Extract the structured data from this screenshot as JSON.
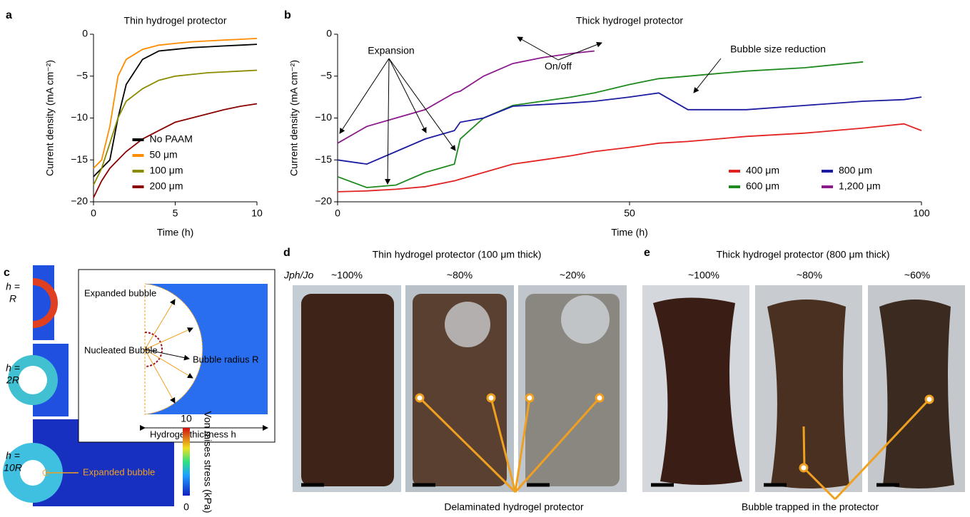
{
  "chart_data": [
    {
      "type": "line",
      "panel_label": "a",
      "title": "Thin hydrogel protector",
      "x_label": "Time (h)",
      "y_label": "Current density (mA cm⁻²)",
      "x": [
        0,
        0.5,
        1,
        1.5,
        2,
        3,
        4,
        5,
        6,
        7,
        8,
        9,
        10
      ],
      "series": [
        {
          "name": "No PAAM",
          "color": "#000000",
          "values": [
            -17,
            -16,
            -15,
            -10,
            -6,
            -3,
            -2,
            -1.8,
            -1.6,
            -1.5,
            -1.4,
            -1.3,
            -1.2
          ]
        },
        {
          "name": "50 μm",
          "color": "#ff8c00",
          "values": [
            -16,
            -15,
            -11,
            -5,
            -3,
            -1.8,
            -1.3,
            -1.1,
            -0.9,
            -0.8,
            -0.7,
            -0.6,
            -0.5
          ]
        },
        {
          "name": "100 μm",
          "color": "#8b8b00",
          "values": [
            -18,
            -16,
            -13,
            -10,
            -8,
            -6.5,
            -5.5,
            -5,
            -4.8,
            -4.6,
            -4.5,
            -4.4,
            -4.3
          ]
        },
        {
          "name": "200 μm",
          "color": "#8b0000",
          "values": [
            -19.5,
            -17.5,
            -16,
            -15,
            -14,
            -12.5,
            -11.5,
            -10.5,
            -10,
            -9.5,
            -9,
            -8.6,
            -8.3
          ]
        }
      ],
      "xlim": [
        0,
        10
      ],
      "ylim": [
        -20,
        0
      ],
      "xticks": [
        0,
        5,
        10
      ],
      "yticks": [
        {
          "value": -20,
          "label": "−20"
        },
        {
          "value": -15,
          "label": "−15"
        },
        {
          "value": -10,
          "label": "−10"
        },
        {
          "value": -5,
          "label": "−5"
        },
        0
      ],
      "legend": "lower center",
      "legend_columns": 1,
      "annotations": []
    },
    {
      "type": "line",
      "panel_label": "b",
      "title": "Thick hydrogel protector",
      "x_label": "Time (h)",
      "y_label": "Current density (mA cm⁻²)",
      "x": [
        0,
        5,
        10,
        15,
        20,
        21,
        25,
        30,
        35,
        40,
        44,
        50,
        55,
        60,
        65,
        70,
        80,
        90,
        97,
        100
      ],
      "series": [
        {
          "name": "400 μm",
          "color": "#e32222",
          "values": [
            -18.8,
            -18.7,
            -18.5,
            -18.2,
            -17.5,
            -17.3,
            -16.5,
            -15.5,
            -15,
            -14.5,
            -14,
            -13.5,
            -13,
            -12.8,
            -12.5,
            -12.2,
            -11.8,
            -11.2,
            -10.7,
            -11.5
          ]
        },
        {
          "name": "600 μm",
          "color": "#1f8a1f",
          "values": [
            -17,
            -18.3,
            -18,
            -16.5,
            -15.5,
            -12.5,
            -10,
            -8.5,
            -8,
            -7.5,
            -7,
            -6,
            -5.3,
            -5,
            -4.7,
            -4.4,
            -4,
            -3.3,
            null,
            null
          ]
        },
        {
          "name": "800 μm",
          "color": "#1c1ca0",
          "values": [
            -15,
            -15.5,
            -14,
            -12.5,
            -11.5,
            -10.5,
            -10,
            -8.6,
            -8.4,
            -8.2,
            -8,
            -7.5,
            -7,
            -9,
            -9,
            -9,
            -8.5,
            -8,
            -7.8,
            -7.5
          ]
        },
        {
          "name": "1,200 μm",
          "color": "#8b1a8b",
          "values": [
            -13,
            -11,
            -10,
            -9,
            -7,
            -6.8,
            -5,
            -3.5,
            -2.8,
            -2.3,
            -2,
            null,
            null,
            null,
            null,
            null,
            null,
            null,
            null,
            null
          ]
        }
      ],
      "xlim": [
        0,
        100
      ],
      "ylim": [
        -20,
        0
      ],
      "xticks": [
        0,
        50,
        100
      ],
      "yticks": [
        {
          "value": -20,
          "label": "−20"
        },
        {
          "value": -15,
          "label": "−15"
        },
        {
          "value": -10,
          "label": "−10"
        },
        {
          "value": -5,
          "label": "−5"
        },
        0
      ],
      "legend": "lower right",
      "legend_columns": 2,
      "annotations": [
        "Expansion",
        "On/off",
        "Bubble size reduction"
      ]
    }
  ],
  "panel_c": {
    "label": "c",
    "sims": [
      {
        "h": "h =",
        "value": "R"
      },
      {
        "h": "h =",
        "value": "2R"
      },
      {
        "h": "h =",
        "value": "10R"
      }
    ],
    "sim_annotation": "Expanded bubble",
    "inset": {
      "expanded": "Expanded bubble",
      "nucleated": "Nucleated Bubble",
      "radius": "Bubble radius R",
      "thickness": "Hydrogel thickness h"
    },
    "colorbar": {
      "title": "Von mises stress (kPa)",
      "max": "10",
      "min": "0"
    }
  },
  "panel_d": {
    "label": "d",
    "title": "Thin hydrogel protector (100 μm thick)",
    "ratio": "Jph/Jo",
    "columns": [
      "~100%",
      "~80%",
      "~20%"
    ],
    "caption": "Delaminated hydrogel protector"
  },
  "panel_e": {
    "label": "e",
    "title": "Thick hydrogel protector (800 μm thick)",
    "columns": [
      "~100%",
      "~80%",
      "~60%"
    ],
    "caption": "Bubble trapped in the protector"
  }
}
